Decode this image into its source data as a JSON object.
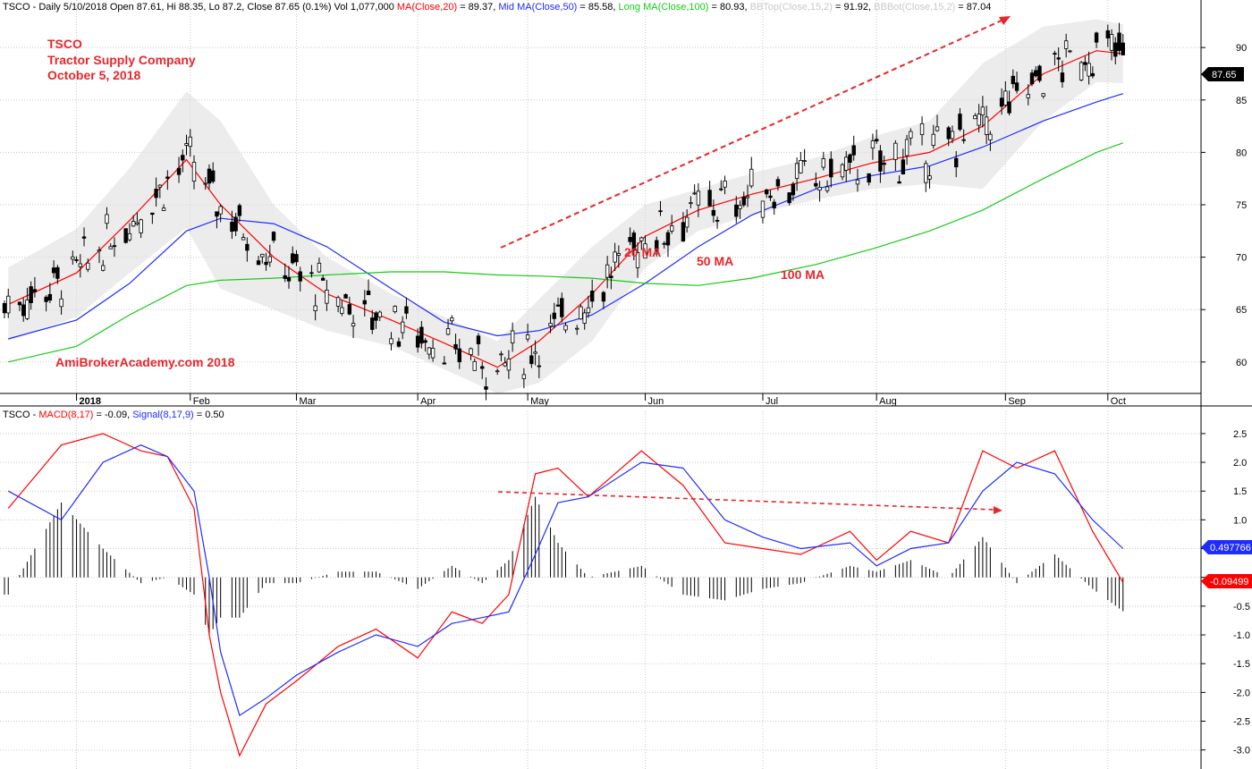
{
  "colors": {
    "up_fill": "#ffffff",
    "down_fill": "#000000",
    "ma20": "#ff0000",
    "ma50": "#1f2bff",
    "ma100": "#19c919",
    "band": "#dcdcdc",
    "macd": "#ff0000",
    "signal": "#1f2bff",
    "hist": "#000000",
    "annotation": "#e8262b",
    "grid": "#c8c8c8"
  },
  "header": {
    "prefix": "TSCO - Daily 5/10/2018 Open 87.61, Hi 88.35, Lo 87.2, Close 87.65 (0.1%) Vol 1,077,000 ",
    "ma20": "MA(Close,20)",
    "ma20_val": " = 89.37, ",
    "ma50": "Mid MA(Close,50)",
    "ma50_val": " = 85.58, ",
    "ma100": "Long MA(Close,100)",
    "ma100_val": " = 80.93, ",
    "bbtop": "BBTop(Close,15,2)",
    "bbtop_val": " = 91.92, ",
    "bbbot": "BBBot(Close,15,2)",
    "bbbot_val": " = 87.04"
  },
  "macd_header": {
    "prefix": "TSCO - ",
    "macd": "MACD(8,17)",
    "macd_val": " = -0.09, ",
    "signal": "Signal(8,17,9)",
    "signal_val": " = 0.50"
  },
  "annotations": {
    "company_line1": "TSCO",
    "company_line2": "Tractor Supply Company",
    "company_line3": "October 5, 2018",
    "watermark": "AmiBrokerAcademy.com  2018",
    "ma20_label": "20 MA",
    "ma50_label": "50 MA",
    "ma100_label": "100 MA"
  },
  "chart_data": [
    {
      "type": "candlestick",
      "title": "TSCO - Daily",
      "x_labels": [
        "2018",
        "Feb",
        "Mar",
        "Apr",
        "May",
        "Jun",
        "Jul",
        "Aug",
        "Sep",
        "Oct"
      ],
      "x_dates": [
        "2018-01-02",
        "2018-02-01",
        "2018-03-01",
        "2018-04-02",
        "2018-05-01",
        "2018-06-01",
        "2018-07-02",
        "2018-08-01",
        "2018-09-04",
        "2018-10-01"
      ],
      "y_ticks": [
        60,
        65,
        70,
        75,
        80,
        85,
        90
      ],
      "ylim": [
        57,
        93
      ],
      "last_value_label": "87.65",
      "grid": true,
      "series": [
        {
          "name": "MA(Close,20)",
          "x": [
            "2017-12-15",
            "2018-01-02",
            "2018-01-16",
            "2018-01-31",
            "2018-02-09",
            "2018-02-23",
            "2018-03-09",
            "2018-03-26",
            "2018-04-09",
            "2018-04-23",
            "2018-05-04",
            "2018-05-18",
            "2018-06-01",
            "2018-06-15",
            "2018-06-29",
            "2018-07-16",
            "2018-07-31",
            "2018-08-15",
            "2018-08-29",
            "2018-09-14",
            "2018-09-28",
            "2018-10-05"
          ],
          "values": [
            65.5,
            68.5,
            73.5,
            79.3,
            75,
            70,
            66.5,
            64,
            61.8,
            59.5,
            62,
            66.5,
            72,
            74.5,
            76,
            77.5,
            79,
            80,
            82.5,
            87.5,
            89.7,
            89.4
          ]
        },
        {
          "name": "Mid MA(Close,50)",
          "x": [
            "2017-12-15",
            "2018-01-02",
            "2018-01-16",
            "2018-01-31",
            "2018-02-09",
            "2018-02-23",
            "2018-03-09",
            "2018-03-26",
            "2018-04-09",
            "2018-04-23",
            "2018-05-04",
            "2018-05-18",
            "2018-06-01",
            "2018-06-15",
            "2018-06-29",
            "2018-07-16",
            "2018-07-31",
            "2018-08-15",
            "2018-08-29",
            "2018-09-14",
            "2018-09-28",
            "2018-10-05"
          ],
          "values": [
            62.2,
            64,
            67.5,
            72.5,
            73.7,
            73.2,
            71,
            67,
            63.8,
            62.5,
            63,
            64.5,
            67.5,
            71,
            74,
            76.5,
            77.8,
            78.7,
            80.5,
            83,
            84.8,
            85.6
          ]
        },
        {
          "name": "Long MA(Close,100)",
          "x": [
            "2017-12-15",
            "2018-01-02",
            "2018-01-16",
            "2018-01-31",
            "2018-02-09",
            "2018-02-23",
            "2018-03-09",
            "2018-03-26",
            "2018-04-09",
            "2018-04-23",
            "2018-05-04",
            "2018-05-18",
            "2018-06-01",
            "2018-06-15",
            "2018-06-29",
            "2018-07-16",
            "2018-07-31",
            "2018-08-15",
            "2018-08-29",
            "2018-09-14",
            "2018-09-28",
            "2018-10-05"
          ],
          "values": [
            60,
            61.5,
            64.5,
            67.3,
            67.8,
            68,
            68.3,
            68.6,
            68.6,
            68.3,
            68.2,
            68,
            67.5,
            67.3,
            68,
            69.3,
            70.8,
            72.5,
            74.5,
            77.5,
            80,
            80.9
          ]
        }
      ]
    },
    {
      "type": "line",
      "title": "TSCO - MACD(8,17)",
      "x_labels": [
        "2018",
        "Feb",
        "Mar",
        "Apr",
        "May",
        "Jun",
        "Jul",
        "Aug",
        "Sep",
        "Oct"
      ],
      "y_ticks": [
        -3.0,
        -2.5,
        -2.0,
        -1.5,
        -1.0,
        -0.5,
        0.0,
        0.5,
        1.0,
        1.5,
        2.0,
        2.5
      ],
      "ylim": [
        -3.3,
        2.7
      ],
      "last_values": {
        "macd": "-0.09499",
        "signal": "0.497766"
      },
      "grid": true,
      "series": [
        {
          "name": "MACD(8,17)",
          "x": [
            "2017-12-15",
            "2017-12-29",
            "2018-01-09",
            "2018-01-19",
            "2018-01-26",
            "2018-02-02",
            "2018-02-06",
            "2018-02-09",
            "2018-02-14",
            "2018-02-21",
            "2018-03-01",
            "2018-03-12",
            "2018-03-22",
            "2018-04-02",
            "2018-04-11",
            "2018-04-19",
            "2018-04-26",
            "2018-05-03",
            "2018-05-09",
            "2018-05-17",
            "2018-05-31",
            "2018-06-11",
            "2018-06-22",
            "2018-07-02",
            "2018-07-12",
            "2018-07-25",
            "2018-08-01",
            "2018-08-10",
            "2018-08-20",
            "2018-08-29",
            "2018-09-07",
            "2018-09-17",
            "2018-09-27",
            "2018-10-05"
          ],
          "values": [
            1.2,
            2.3,
            2.5,
            2.2,
            2.1,
            1.2,
            -1.0,
            -2.0,
            -3.1,
            -2.2,
            -1.8,
            -1.2,
            -0.9,
            -1.4,
            -0.6,
            -0.8,
            -0.3,
            1.8,
            1.9,
            1.4,
            2.2,
            1.6,
            0.6,
            0.5,
            0.4,
            0.8,
            0.3,
            0.8,
            0.6,
            2.2,
            1.9,
            2.2,
            0.8,
            -0.09
          ]
        },
        {
          "name": "Signal(8,17,9)",
          "x": [
            "2017-12-15",
            "2017-12-29",
            "2018-01-09",
            "2018-01-19",
            "2018-01-26",
            "2018-02-02",
            "2018-02-06",
            "2018-02-09",
            "2018-02-14",
            "2018-02-21",
            "2018-03-01",
            "2018-03-12",
            "2018-03-22",
            "2018-04-02",
            "2018-04-11",
            "2018-04-19",
            "2018-04-26",
            "2018-05-03",
            "2018-05-09",
            "2018-05-17",
            "2018-05-31",
            "2018-06-11",
            "2018-06-22",
            "2018-07-02",
            "2018-07-12",
            "2018-07-25",
            "2018-08-01",
            "2018-08-10",
            "2018-08-20",
            "2018-08-29",
            "2018-09-07",
            "2018-09-17",
            "2018-09-27",
            "2018-10-05"
          ],
          "values": [
            1.5,
            1.0,
            2.0,
            2.3,
            2.1,
            1.5,
            0.0,
            -1.3,
            -2.4,
            -2.1,
            -1.7,
            -1.3,
            -1.0,
            -1.2,
            -0.8,
            -0.7,
            -0.6,
            0.4,
            1.3,
            1.4,
            2.0,
            1.9,
            1.0,
            0.7,
            0.5,
            0.6,
            0.2,
            0.5,
            0.6,
            1.5,
            2.0,
            1.8,
            1.0,
            0.5
          ]
        }
      ]
    }
  ]
}
